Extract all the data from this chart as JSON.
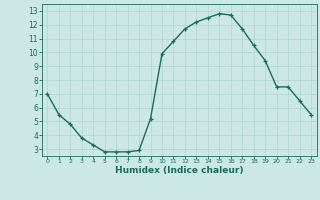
{
  "x": [
    0,
    1,
    2,
    3,
    4,
    5,
    6,
    7,
    8,
    9,
    10,
    11,
    12,
    13,
    14,
    15,
    16,
    17,
    18,
    19,
    20,
    21,
    22,
    23
  ],
  "y": [
    7.0,
    5.5,
    4.8,
    3.8,
    3.3,
    2.8,
    2.8,
    2.8,
    2.9,
    5.2,
    9.9,
    10.8,
    11.7,
    12.2,
    12.5,
    12.8,
    12.7,
    11.7,
    10.5,
    9.4,
    7.5,
    7.5,
    6.5,
    5.5
  ],
  "xlabel": "Humidex (Indice chaleur)",
  "xlim": [
    -0.5,
    23.5
  ],
  "ylim": [
    2.5,
    13.5
  ],
  "yticks": [
    3,
    4,
    5,
    6,
    7,
    8,
    9,
    10,
    11,
    12,
    13
  ],
  "xticks": [
    0,
    1,
    2,
    3,
    4,
    5,
    6,
    7,
    8,
    9,
    10,
    11,
    12,
    13,
    14,
    15,
    16,
    17,
    18,
    19,
    20,
    21,
    22,
    23
  ],
  "line_color": "#1a6b5a",
  "bg_color": "#cce8e4",
  "grid_color": "#b0d4cf",
  "marker": "+",
  "marker_size": 3,
  "linewidth": 1.0
}
